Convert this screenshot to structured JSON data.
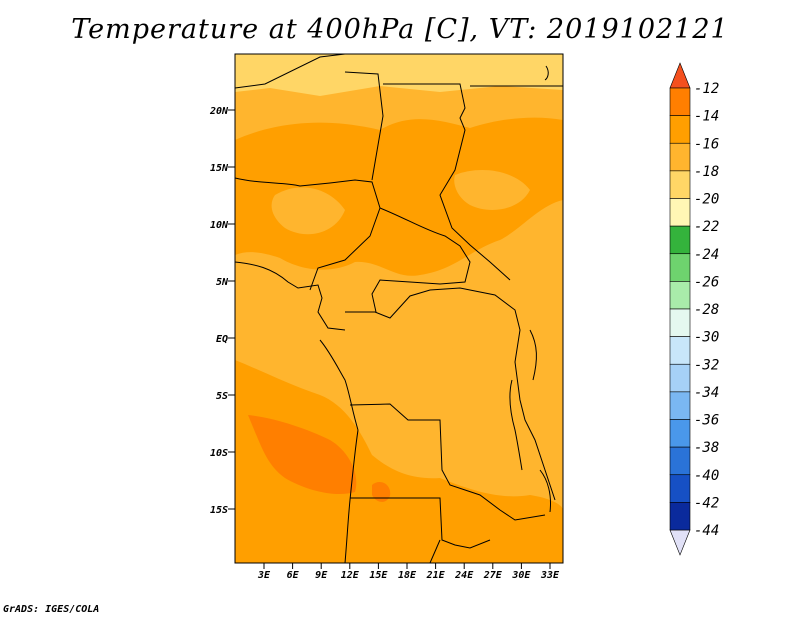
{
  "title": "Temperature at 400hPa [C], VT: 2019102121",
  "credit": "GrADS: IGES/COLA",
  "map": {
    "variable": "Temperature",
    "level": "400hPa",
    "units": "C",
    "valid_time": "2019102121",
    "lat_labels": [
      "20N",
      "15N",
      "10N",
      "5N",
      "EQ",
      "5S",
      "10S",
      "15S"
    ],
    "lon_labels": [
      "3E",
      "6E",
      "9E",
      "12E",
      "15E",
      "18E",
      "21E",
      "24E",
      "27E",
      "30E",
      "33E"
    ]
  },
  "colorbar": {
    "labels": [
      "-12",
      "-14",
      "-16",
      "-18",
      "-20",
      "-22",
      "-24",
      "-26",
      "-28",
      "-30",
      "-32",
      "-34",
      "-36",
      "-38",
      "-40",
      "-42",
      "-44"
    ],
    "colors": [
      "#ff4d00",
      "#ff7f00",
      "#ff9f00",
      "#ffb52e",
      "#ffd666",
      "#fff7b5",
      "#34b33c",
      "#6ed36e",
      "#a9ecaa",
      "#e5f8f0",
      "#c8e6fa",
      "#a6d1f7",
      "#7ab7f2",
      "#4a98ea",
      "#2a73d8",
      "#1650c4",
      "#0a2a9c"
    ],
    "top_color": "#f4501e",
    "bottom_color": "#e1e1f7"
  }
}
